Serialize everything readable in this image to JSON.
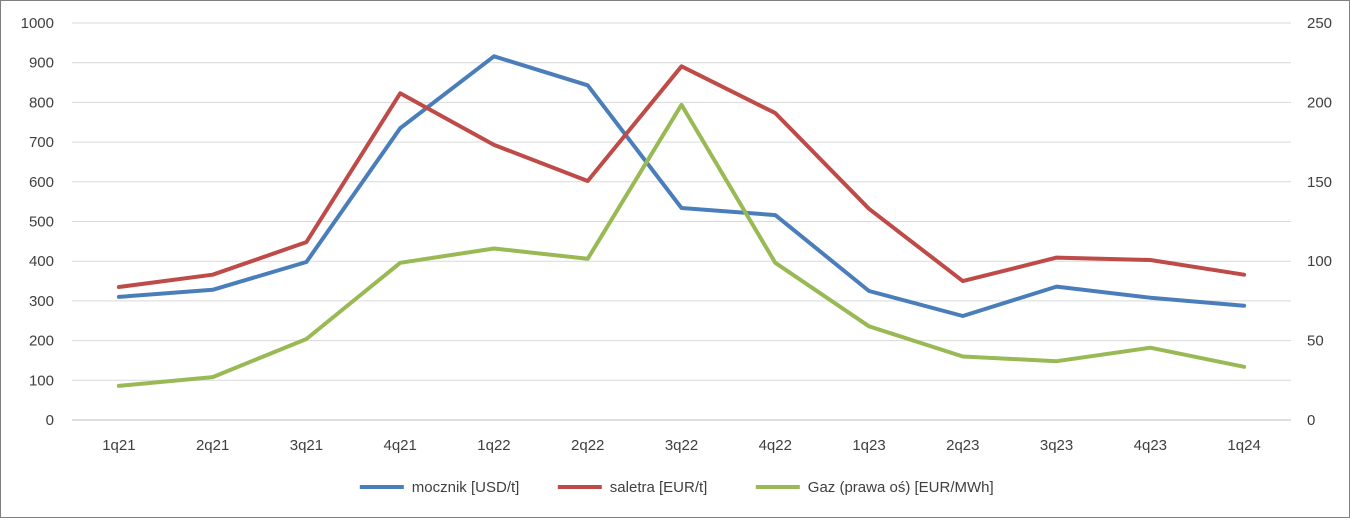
{
  "chart_data": {
    "type": "line",
    "categories": [
      "1q21",
      "2q21",
      "3q21",
      "4q21",
      "1q22",
      "2q22",
      "3q22",
      "4q22",
      "1q23",
      "2q23",
      "3q23",
      "4q23",
      "1q24"
    ],
    "y_left": {
      "min": 0,
      "max": 1000,
      "step": 100,
      "ticks": [
        "0",
        "100",
        "200",
        "300",
        "400",
        "500",
        "600",
        "700",
        "800",
        "900",
        "1000"
      ]
    },
    "y_right": {
      "min": 0,
      "max": 250,
      "step": 50,
      "ticks": [
        "0",
        "50",
        "100",
        "150",
        "200",
        "250"
      ]
    },
    "grid": true,
    "legend_position": "bottom",
    "series": [
      {
        "name": "mocznik [USD/t]",
        "axis": "left",
        "color": "#4a7ebb",
        "values": [
          310,
          328,
          398,
          735,
          916,
          843,
          534,
          516,
          325,
          262,
          336,
          308,
          288
        ]
      },
      {
        "name": "saletra [EUR/t]",
        "axis": "left",
        "color": "#be4b48",
        "values": [
          335,
          366,
          448,
          823,
          693,
          602,
          891,
          773,
          532,
          350,
          409,
          403,
          366
        ]
      },
      {
        "name": "Gaz (prawa oś) [EUR/MWh]",
        "axis": "right",
        "color": "#98b954",
        "values": [
          21.5,
          27,
          51,
          99,
          108,
          101.5,
          198.5,
          99,
          59,
          40,
          37,
          45.5,
          33.5
        ]
      }
    ]
  }
}
